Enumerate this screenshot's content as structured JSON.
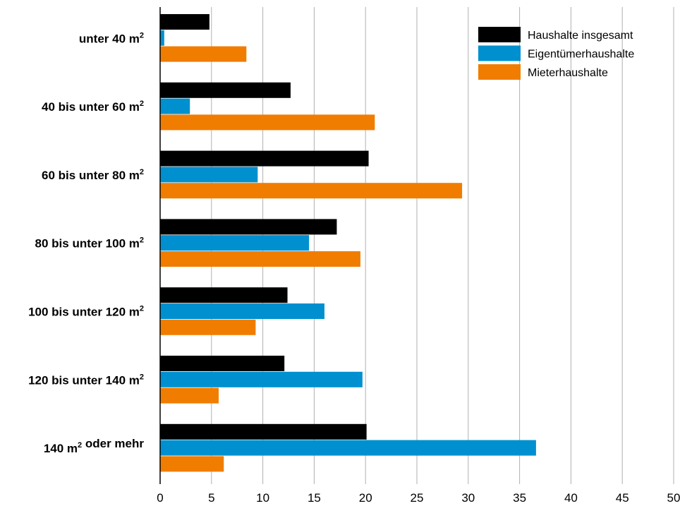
{
  "chart_data": {
    "type": "bar",
    "orientation": "horizontal",
    "categories": [
      "unter 40 m²",
      "40 bis unter 60 m²",
      "60 bis unter 80 m²",
      "80 bis unter 100 m²",
      "100 bis unter 120 m²",
      "120 bis unter 140 m²",
      "140 m² oder mehr"
    ],
    "series": [
      {
        "name": "Haushalte insgesamt",
        "color": "#000000",
        "values": [
          4.8,
          12.7,
          20.3,
          17.2,
          12.4,
          12.1,
          20.1
        ]
      },
      {
        "name": "Eigentümerhaushalte",
        "color": "#0090d0",
        "values": [
          0.4,
          2.9,
          9.5,
          14.5,
          16.0,
          19.7,
          36.6
        ]
      },
      {
        "name": "Mieterhaushalte",
        "color": "#f07d00",
        "values": [
          8.4,
          20.9,
          29.4,
          19.5,
          9.3,
          5.7,
          6.2
        ]
      }
    ],
    "xlim": [
      0,
      50
    ],
    "xticks": [
      "0",
      "5",
      "10",
      "15",
      "20",
      "25",
      "30",
      "35",
      "40",
      "45",
      "50"
    ],
    "grid": true,
    "legend_position": "top-right",
    "gridline_color": "#b0b0b0"
  }
}
